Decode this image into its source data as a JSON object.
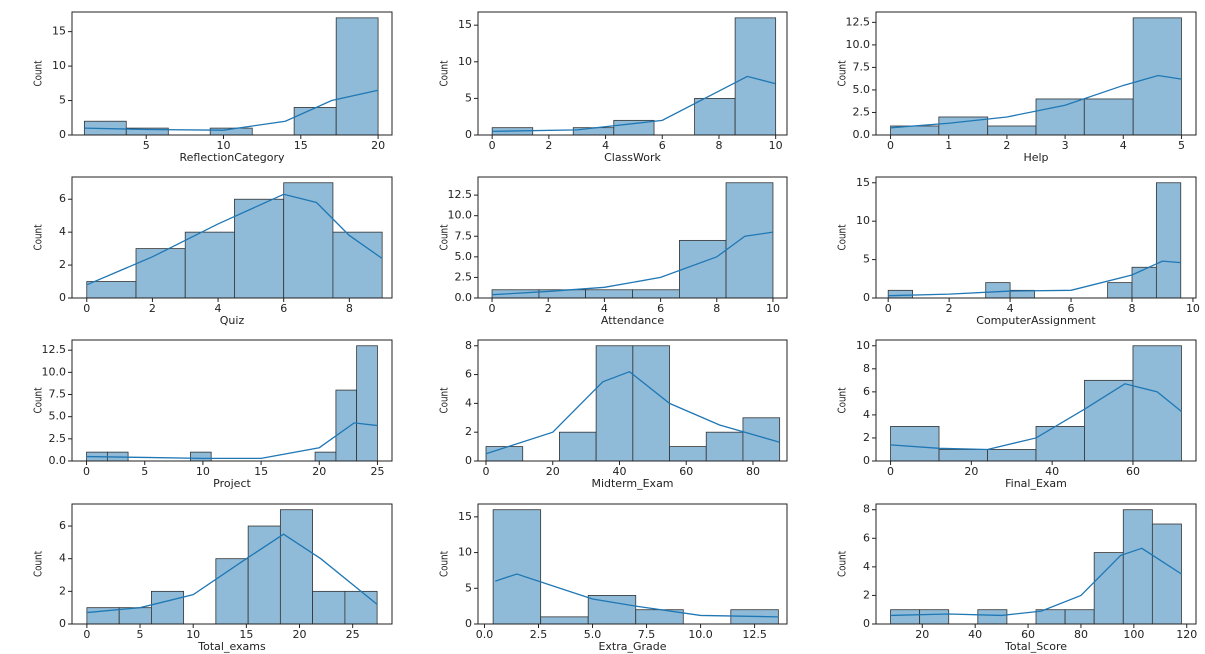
{
  "chart_data": [
    {
      "type": "histogram",
      "xlabel": "ReflectionCategory",
      "ylabel": "Count",
      "bins": [
        1,
        3.71,
        6.43,
        9.14,
        11.86,
        14.57,
        17.29,
        20
      ],
      "values": [
        2,
        1,
        0,
        1,
        0,
        4,
        17
      ],
      "color": "#8fbbd9",
      "xlim": [
        0.2,
        20.9
      ],
      "ylim": [
        0,
        17.85
      ],
      "xticks": [
        5,
        10,
        15,
        20
      ],
      "yticks": [
        0,
        5,
        10,
        15
      ],
      "kde": {
        "x": [
          1,
          5,
          10,
          14,
          17,
          20
        ],
        "values": [
          1,
          0.8,
          0.7,
          2,
          5,
          6.5
        ],
        "color": "#1f77b4"
      }
    },
    {
      "type": "histogram",
      "xlabel": "ClassWork",
      "ylabel": "Count",
      "bins": [
        0,
        1.43,
        2.86,
        4.29,
        5.71,
        7.14,
        8.57,
        10
      ],
      "values": [
        1,
        0,
        1,
        2,
        0,
        5,
        16
      ],
      "color": "#8fbbd9",
      "xlim": [
        -0.5,
        10.4
      ],
      "ylim": [
        0,
        16.8
      ],
      "xticks": [
        0,
        2,
        4,
        6,
        8,
        10
      ],
      "yticks": [
        0,
        5,
        10,
        15
      ],
      "kde": {
        "x": [
          0,
          3,
          6,
          8,
          9,
          10
        ],
        "values": [
          0.5,
          0.7,
          2,
          6,
          8,
          7
        ],
        "color": "#1f77b4"
      }
    },
    {
      "type": "histogram",
      "xlabel": "Help",
      "ylabel": "Count",
      "bins": [
        0,
        0.83,
        1.67,
        2.5,
        3.33,
        4.17,
        5
      ],
      "values": [
        1,
        2,
        1,
        4,
        4,
        13
      ],
      "color": "#8fbbd9",
      "xlim": [
        -0.25,
        5.25
      ],
      "ylim": [
        0,
        13.65
      ],
      "xticks": [
        0,
        1,
        2,
        3,
        4,
        5
      ],
      "yticks": [
        {
          "value": 0,
          "label": "0.0"
        },
        2.5,
        {
          "value": 5,
          "label": "5.0"
        },
        7.5,
        {
          "value": 10,
          "label": "10.0"
        },
        12.5
      ],
      "kde": {
        "x": [
          0,
          1,
          2,
          3,
          4,
          4.6,
          5
        ],
        "values": [
          0.8,
          1.3,
          2,
          3.3,
          5.5,
          6.6,
          6.2
        ],
        "color": "#1f77b4"
      }
    },
    {
      "type": "histogram",
      "xlabel": "Quiz",
      "ylabel": "Count",
      "bins": [
        0,
        1.5,
        3,
        4.5,
        6,
        7.5,
        9
      ],
      "values": [
        1,
        3,
        4,
        6,
        7,
        4
      ],
      "color": "#8fbbd9",
      "xlim": [
        -0.45,
        9.3
      ],
      "ylim": [
        0,
        7.35
      ],
      "xticks": [
        0,
        2,
        4,
        6,
        8
      ],
      "yticks": [
        0,
        2,
        4,
        6
      ],
      "kde": {
        "x": [
          0,
          2,
          4,
          6,
          7,
          8,
          9
        ],
        "values": [
          0.8,
          2.5,
          4.5,
          6.3,
          5.8,
          3.8,
          2.4
        ],
        "color": "#1f77b4"
      }
    },
    {
      "type": "histogram",
      "xlabel": "Attendance",
      "ylabel": "Count",
      "bins": [
        0,
        1.67,
        3.33,
        5,
        6.67,
        8.33,
        10
      ],
      "values": [
        1,
        1,
        1,
        1,
        7,
        14
      ],
      "color": "#8fbbd9",
      "xlim": [
        -0.5,
        10.5
      ],
      "ylim": [
        0,
        14.7
      ],
      "xticks": [
        0,
        2,
        4,
        6,
        8,
        10
      ],
      "yticks": [
        {
          "value": 0,
          "label": "0.0"
        },
        2.5,
        {
          "value": 5,
          "label": "5.0"
        },
        7.5,
        {
          "value": 10,
          "label": "10.0"
        },
        12.5
      ],
      "kde": {
        "x": [
          0,
          2,
          4,
          6,
          8,
          9,
          10
        ],
        "values": [
          0.4,
          0.8,
          1.3,
          2.5,
          5,
          7.5,
          8
        ],
        "color": "#1f77b4"
      }
    },
    {
      "type": "histogram",
      "xlabel": "ComputerAssignment",
      "ylabel": "Count",
      "bins": [
        0,
        0.8,
        1.6,
        2.4,
        3.2,
        4,
        4.8,
        5.6,
        6.4,
        7.2,
        8,
        8.8,
        9.6
      ],
      "values": [
        1,
        0,
        0,
        0,
        2,
        1,
        0,
        0,
        0,
        2,
        4,
        15
      ],
      "color": "#8fbbd9",
      "xlim": [
        -0.4,
        10.1
      ],
      "ylim": [
        0,
        15.75
      ],
      "xticks": [
        0,
        2,
        4,
        6,
        8,
        10
      ],
      "yticks": [
        0,
        5,
        10,
        15
      ],
      "kde": {
        "x": [
          0,
          2,
          4,
          6,
          8,
          9,
          9.6
        ],
        "values": [
          0.3,
          0.5,
          0.9,
          1,
          3,
          4.8,
          4.6
        ],
        "color": "#1f77b4"
      }
    },
    {
      "type": "histogram",
      "xlabel": "Project",
      "ylabel": "Count",
      "bins": [
        0,
        1.79,
        3.57,
        5.36,
        7.14,
        8.93,
        10.71,
        12.5,
        14.29,
        16.07,
        17.86,
        19.64,
        21.43,
        23.21,
        25
      ],
      "values": [
        1,
        1,
        0,
        0,
        0,
        1,
        0,
        0,
        0,
        0,
        0,
        1,
        8,
        13
      ],
      "color": "#8fbbd9",
      "xlim": [
        -1.25,
        26.25
      ],
      "ylim": [
        0,
        13.65
      ],
      "xticks": [
        0,
        5,
        10,
        15,
        20,
        25
      ],
      "yticks": [
        {
          "value": 0,
          "label": "0.0"
        },
        2.5,
        {
          "value": 5,
          "label": "5.0"
        },
        7.5,
        {
          "value": 10,
          "label": "10.0"
        },
        12.5
      ],
      "kde": {
        "x": [
          0,
          5,
          10,
          15,
          20,
          23,
          25
        ],
        "values": [
          0.5,
          0.4,
          0.3,
          0.3,
          1.5,
          4.3,
          4
        ],
        "color": "#1f77b4"
      }
    },
    {
      "type": "histogram",
      "xlabel": "Midterm_Exam",
      "ylabel": "Count",
      "bins": [
        0,
        11,
        22,
        33,
        44,
        55,
        66,
        77,
        88
      ],
      "values": [
        1,
        0,
        2,
        8,
        8,
        1,
        2,
        3
      ],
      "color": "#8fbbd9",
      "xlim": [
        -2.4,
        90.2
      ],
      "ylim": [
        0,
        8.4
      ],
      "xticks": [
        0,
        20,
        40,
        60,
        80
      ],
      "yticks": [
        0,
        2,
        4,
        6,
        8
      ],
      "kde": {
        "x": [
          0,
          20,
          35,
          43,
          55,
          70,
          88
        ],
        "values": [
          0.5,
          2,
          5.5,
          6.2,
          4,
          2.5,
          1.3
        ],
        "color": "#1f77b4"
      }
    },
    {
      "type": "histogram",
      "xlabel": "Final_Exam",
      "ylabel": "Count",
      "bins": [
        0,
        12,
        24,
        36,
        48,
        60,
        72
      ],
      "values": [
        3,
        1,
        1,
        3,
        7,
        10
      ],
      "color": "#8fbbd9",
      "xlim": [
        -3.6,
        75.6
      ],
      "ylim": [
        0,
        10.5
      ],
      "xticks": [
        0,
        20,
        40,
        60
      ],
      "yticks": [
        0,
        2,
        4,
        6,
        8,
        10
      ],
      "kde": {
        "x": [
          0,
          12,
          24,
          36,
          48,
          58,
          66,
          72
        ],
        "values": [
          1.4,
          1.1,
          1,
          2,
          4.5,
          6.7,
          6,
          4.3
        ],
        "color": "#1f77b4"
      }
    },
    {
      "type": "histogram",
      "xlabel": "Total_exams",
      "ylabel": "Count",
      "bins": [
        0,
        3.04,
        6.07,
        9.1,
        12.13,
        15.17,
        18.2,
        21.23,
        24.27,
        27.3
      ],
      "values": [
        1,
        1,
        2,
        0,
        4,
        6,
        7,
        2,
        2
      ],
      "color": "#8fbbd9",
      "xlim": [
        -1.4,
        28.7
      ],
      "ylim": [
        0,
        7.35
      ],
      "xticks": [
        0,
        5,
        10,
        15,
        20,
        25
      ],
      "yticks": [
        0,
        2,
        4,
        6
      ],
      "kde": {
        "x": [
          0,
          5,
          10,
          15,
          18.5,
          22,
          27.3
        ],
        "values": [
          0.7,
          1,
          1.8,
          4,
          5.5,
          4,
          1.2
        ],
        "color": "#1f77b4"
      }
    },
    {
      "type": "histogram",
      "xlabel": "Extra_Grade",
      "ylabel": "Count",
      "bins": [
        0.4,
        2.6,
        4.8,
        7,
        9.2,
        11.4,
        13.6
      ],
      "values": [
        16,
        1,
        4,
        2,
        0,
        2
      ],
      "color": "#8fbbd9",
      "xlim": [
        -0.3,
        14
      ],
      "ylim": [
        0,
        16.8
      ],
      "xticks": [
        {
          "value": 0,
          "label": "0.0"
        },
        2.5,
        {
          "value": 5,
          "label": "5.0"
        },
        7.5,
        {
          "value": 10,
          "label": "10.0"
        },
        12.5
      ],
      "yticks": [
        0,
        5,
        10,
        15
      ],
      "kde": {
        "x": [
          0.5,
          1.5,
          3,
          5,
          7,
          10,
          13.6
        ],
        "values": [
          6,
          7,
          5.5,
          3.5,
          2.5,
          1.2,
          1
        ],
        "color": "#1f77b4"
      }
    },
    {
      "type": "histogram",
      "xlabel": "Total_Score",
      "ylabel": "Count",
      "bins": [
        8,
        19,
        30,
        41,
        52,
        63,
        74,
        85,
        96,
        107,
        118
      ],
      "values": [
        1,
        1,
        0,
        1,
        0,
        1,
        1,
        5,
        8,
        7
      ],
      "color": "#8fbbd9",
      "xlim": [
        2.5,
        123.5
      ],
      "ylim": [
        0,
        8.4
      ],
      "xticks": [
        20,
        40,
        60,
        80,
        100,
        120
      ],
      "yticks": [
        0,
        2,
        4,
        6,
        8
      ],
      "kde": {
        "x": [
          8,
          30,
          50,
          65,
          80,
          95,
          103,
          118
        ],
        "values": [
          0.6,
          0.7,
          0.6,
          0.9,
          2,
          4.8,
          5.3,
          3.5
        ],
        "color": "#1f77b4"
      }
    }
  ]
}
